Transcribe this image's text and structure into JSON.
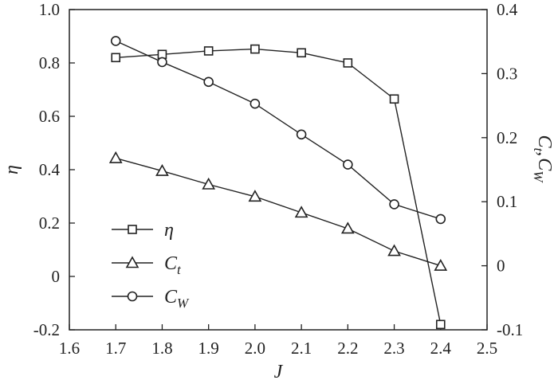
{
  "chart_data": {
    "type": "line",
    "x": [
      1.7,
      1.8,
      1.9,
      2.0,
      2.1,
      2.2,
      2.3,
      2.4
    ],
    "xlabel": "J",
    "xlim": [
      1.6,
      2.5
    ],
    "xticks": [
      "1.6",
      "1.7",
      "1.8",
      "1.9",
      "2.0",
      "2.1",
      "2.2",
      "2.3",
      "2.4",
      "2.5"
    ],
    "y_left": {
      "label": "η",
      "lim": [
        -0.2,
        1.0
      ],
      "ticks": [
        "-0.2",
        "0",
        "0.2",
        "0.4",
        "0.6",
        "0.8",
        "1.0"
      ]
    },
    "y_right": {
      "label": "C_t, C_W",
      "label_parts": [
        "C",
        "t",
        ",",
        "C",
        "W"
      ],
      "lim": [
        -0.1,
        0.4
      ],
      "ticks": [
        "-0.1",
        "0",
        "0.1",
        "0.2",
        "0.3",
        "0.4"
      ]
    },
    "series": [
      {
        "name": "η",
        "sub": "",
        "axis": "left",
        "marker": "square",
        "values": [
          0.82,
          0.832,
          0.845,
          0.852,
          0.838,
          0.8,
          0.665,
          -0.18
        ]
      },
      {
        "name": "C",
        "sub": "t",
        "axis": "right",
        "marker": "triangle",
        "values": [
          0.168,
          0.148,
          0.127,
          0.108,
          0.083,
          0.058,
          0.023,
          0.0
        ]
      },
      {
        "name": "C",
        "sub": "W",
        "axis": "right",
        "marker": "circle",
        "values": [
          0.351,
          0.318,
          0.287,
          0.253,
          0.205,
          0.158,
          0.096,
          0.073
        ]
      }
    ],
    "legend_position": "lower-left",
    "grid": false
  }
}
